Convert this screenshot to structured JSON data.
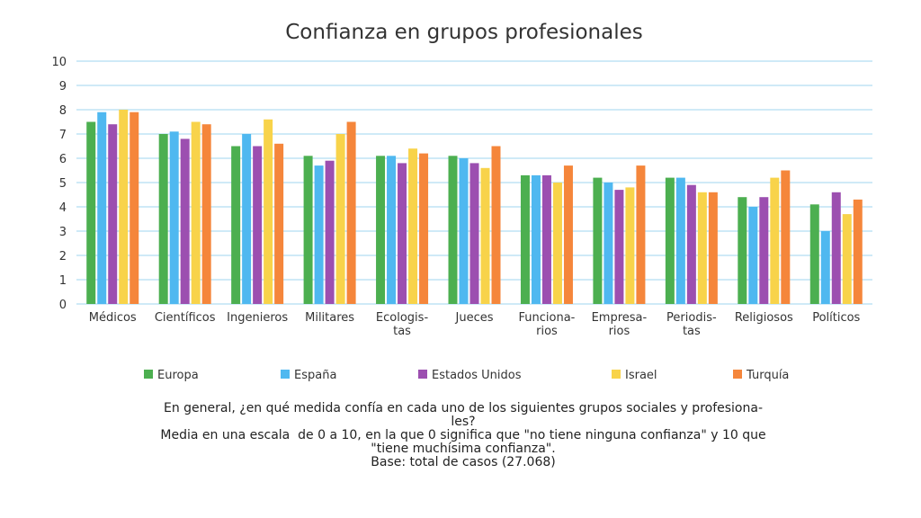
{
  "chart_data": {
    "type": "bar",
    "title": "Confianza en grupos profesionales",
    "categories": [
      [
        "Médicos"
      ],
      [
        "Científicos"
      ],
      [
        "Ingenieros"
      ],
      [
        "Militares"
      ],
      [
        "Ecologis-",
        "tas"
      ],
      [
        "Jueces"
      ],
      [
        "Funciona-",
        "rios"
      ],
      [
        "Empresa-",
        "rios"
      ],
      [
        "Periodis-",
        "tas"
      ],
      [
        "Religiosos"
      ],
      [
        "Políticos"
      ]
    ],
    "yticks": [
      "0",
      "1",
      "2",
      "3",
      "4",
      "5",
      "6",
      "7",
      "8",
      "9",
      "10"
    ],
    "ylim": [
      0,
      10
    ],
    "grid": true,
    "legend_position": "bottom",
    "series": [
      {
        "name": "Europa",
        "color": "#4caf50",
        "values": [
          7.5,
          7.0,
          6.5,
          6.1,
          6.1,
          6.1,
          5.3,
          5.2,
          5.2,
          4.4,
          4.1
        ]
      },
      {
        "name": "España",
        "color": "#4fb8f0",
        "values": [
          7.9,
          7.1,
          7.0,
          5.7,
          6.1,
          6.0,
          5.3,
          5.0,
          5.2,
          4.0,
          3.0
        ]
      },
      {
        "name": "Estados Unidos",
        "color": "#9c4fb0",
        "values": [
          7.4,
          6.8,
          6.5,
          5.9,
          5.8,
          5.8,
          5.3,
          4.7,
          4.9,
          4.4,
          4.6
        ]
      },
      {
        "name": "Israel",
        "color": "#f8d34a",
        "values": [
          8.0,
          7.5,
          7.6,
          7.0,
          6.4,
          5.6,
          5.0,
          4.8,
          4.6,
          5.2,
          3.7
        ]
      },
      {
        "name": "Turquía",
        "color": "#f5863b",
        "values": [
          7.9,
          7.4,
          6.6,
          7.5,
          6.2,
          6.5,
          5.7,
          5.7,
          4.6,
          5.5,
          4.3
        ]
      }
    ]
  },
  "footnote": {
    "line1": "En general, ¿en qué medida confía en cada uno de los siguientes grupos sociales y profesiona-",
    "line2": "les?",
    "line3": "Media en una escala  de 0 a 10, en la que 0 significa que \"no tiene ninguna confianza\" y 10 que",
    "line4": "\"tiene muchísima confianza\".",
    "line5": "Base: total de casos (27.068)"
  }
}
